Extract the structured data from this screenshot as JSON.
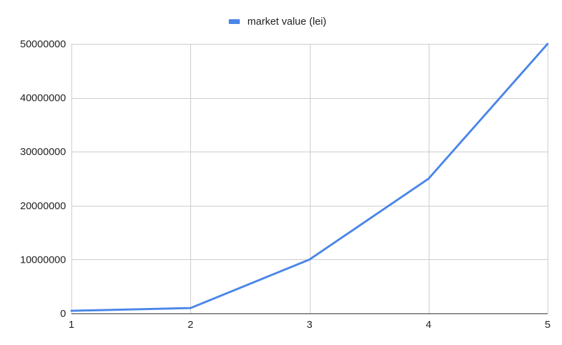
{
  "chart_data": {
    "type": "line",
    "title": "",
    "xlabel": "",
    "ylabel": "",
    "x": [
      1,
      2,
      3,
      4,
      5
    ],
    "xticks": [
      "1",
      "2",
      "3",
      "4",
      "5"
    ],
    "yticks": [
      "0",
      "10000000",
      "20000000",
      "30000000",
      "40000000",
      "50000000"
    ],
    "ylim": [
      0,
      50000000
    ],
    "grid": true,
    "legend_position": "top-center",
    "series": [
      {
        "name": "market value (lei)",
        "color": "#4a86e8",
        "values": [
          500000,
          1000000,
          10000000,
          25000000,
          50000000
        ]
      }
    ]
  }
}
